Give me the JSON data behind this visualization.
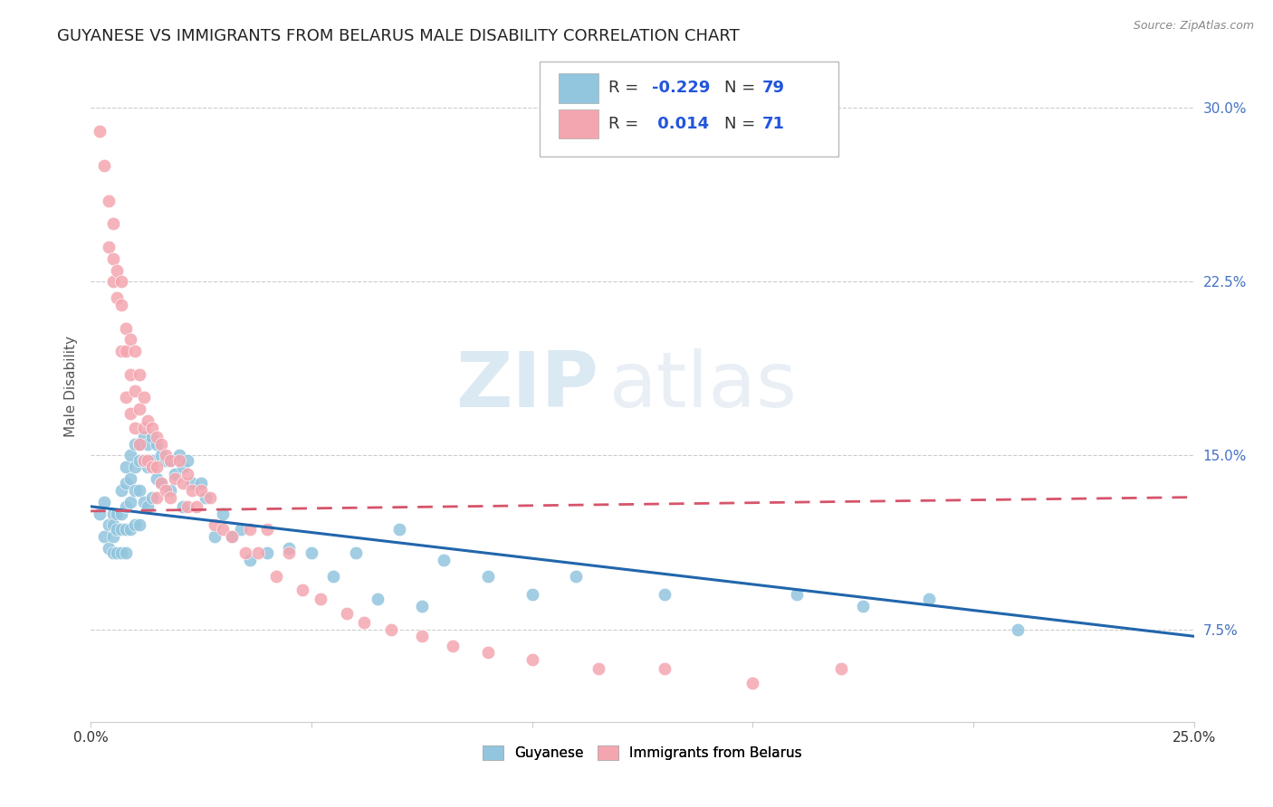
{
  "title": "GUYANESE VS IMMIGRANTS FROM BELARUS MALE DISABILITY CORRELATION CHART",
  "source": "Source: ZipAtlas.com",
  "ylabel": "Male Disability",
  "ytick_labels": [
    "7.5%",
    "15.0%",
    "22.5%",
    "30.0%"
  ],
  "ytick_values": [
    0.075,
    0.15,
    0.225,
    0.3
  ],
  "xlim": [
    0.0,
    0.25
  ],
  "ylim": [
    0.035,
    0.325
  ],
  "blue_color": "#92C5DE",
  "pink_color": "#F4A6B0",
  "line_blue_color": "#2166AC",
  "line_pink_color": "#D6546A",
  "watermark_zip": "ZIP",
  "watermark_atlas": "atlas",
  "blue_scatter_x": [
    0.002,
    0.003,
    0.003,
    0.004,
    0.004,
    0.005,
    0.005,
    0.005,
    0.005,
    0.006,
    0.006,
    0.006,
    0.007,
    0.007,
    0.007,
    0.007,
    0.008,
    0.008,
    0.008,
    0.008,
    0.008,
    0.009,
    0.009,
    0.009,
    0.009,
    0.01,
    0.01,
    0.01,
    0.01,
    0.011,
    0.011,
    0.011,
    0.011,
    0.012,
    0.012,
    0.012,
    0.013,
    0.013,
    0.013,
    0.014,
    0.014,
    0.014,
    0.015,
    0.015,
    0.016,
    0.016,
    0.017,
    0.018,
    0.018,
    0.019,
    0.02,
    0.021,
    0.021,
    0.022,
    0.023,
    0.025,
    0.026,
    0.028,
    0.03,
    0.032,
    0.034,
    0.036,
    0.04,
    0.045,
    0.05,
    0.055,
    0.06,
    0.065,
    0.07,
    0.075,
    0.08,
    0.09,
    0.1,
    0.11,
    0.13,
    0.16,
    0.175,
    0.19,
    0.21
  ],
  "blue_scatter_y": [
    0.125,
    0.13,
    0.115,
    0.12,
    0.11,
    0.125,
    0.12,
    0.115,
    0.108,
    0.125,
    0.118,
    0.108,
    0.135,
    0.125,
    0.118,
    0.108,
    0.145,
    0.138,
    0.128,
    0.118,
    0.108,
    0.15,
    0.14,
    0.13,
    0.118,
    0.155,
    0.145,
    0.135,
    0.12,
    0.155,
    0.148,
    0.135,
    0.12,
    0.158,
    0.148,
    0.13,
    0.155,
    0.145,
    0.128,
    0.158,
    0.148,
    0.132,
    0.155,
    0.14,
    0.15,
    0.138,
    0.148,
    0.148,
    0.135,
    0.142,
    0.15,
    0.145,
    0.128,
    0.148,
    0.138,
    0.138,
    0.132,
    0.115,
    0.125,
    0.115,
    0.118,
    0.105,
    0.108,
    0.11,
    0.108,
    0.098,
    0.108,
    0.088,
    0.118,
    0.085,
    0.105,
    0.098,
    0.09,
    0.098,
    0.09,
    0.09,
    0.085,
    0.088,
    0.075
  ],
  "pink_scatter_x": [
    0.002,
    0.003,
    0.004,
    0.004,
    0.005,
    0.005,
    0.005,
    0.006,
    0.006,
    0.007,
    0.007,
    0.007,
    0.008,
    0.008,
    0.008,
    0.009,
    0.009,
    0.009,
    0.01,
    0.01,
    0.01,
    0.011,
    0.011,
    0.011,
    0.012,
    0.012,
    0.012,
    0.013,
    0.013,
    0.014,
    0.014,
    0.015,
    0.015,
    0.015,
    0.016,
    0.016,
    0.017,
    0.017,
    0.018,
    0.018,
    0.019,
    0.02,
    0.021,
    0.022,
    0.022,
    0.023,
    0.024,
    0.025,
    0.027,
    0.028,
    0.03,
    0.032,
    0.035,
    0.036,
    0.038,
    0.04,
    0.042,
    0.045,
    0.048,
    0.052,
    0.058,
    0.062,
    0.068,
    0.075,
    0.082,
    0.09,
    0.1,
    0.115,
    0.13,
    0.15,
    0.17
  ],
  "pink_scatter_y": [
    0.29,
    0.275,
    0.26,
    0.24,
    0.25,
    0.235,
    0.225,
    0.23,
    0.218,
    0.225,
    0.215,
    0.195,
    0.205,
    0.195,
    0.175,
    0.2,
    0.185,
    0.168,
    0.195,
    0.178,
    0.162,
    0.185,
    0.17,
    0.155,
    0.175,
    0.162,
    0.148,
    0.165,
    0.148,
    0.162,
    0.145,
    0.158,
    0.145,
    0.132,
    0.155,
    0.138,
    0.15,
    0.135,
    0.148,
    0.132,
    0.14,
    0.148,
    0.138,
    0.142,
    0.128,
    0.135,
    0.128,
    0.135,
    0.132,
    0.12,
    0.118,
    0.115,
    0.108,
    0.118,
    0.108,
    0.118,
    0.098,
    0.108,
    0.092,
    0.088,
    0.082,
    0.078,
    0.075,
    0.072,
    0.068,
    0.065,
    0.062,
    0.058,
    0.058,
    0.052,
    0.058
  ],
  "blue_line_x": [
    0.0,
    0.25
  ],
  "blue_line_y": [
    0.128,
    0.072
  ],
  "pink_line_x": [
    0.0,
    0.25
  ],
  "pink_line_y": [
    0.126,
    0.132
  ],
  "grid_color": "#CCCCCC",
  "background_color": "#FFFFFF",
  "title_fontsize": 13,
  "label_fontsize": 11,
  "tick_fontsize": 11,
  "legend_fontsize": 13
}
